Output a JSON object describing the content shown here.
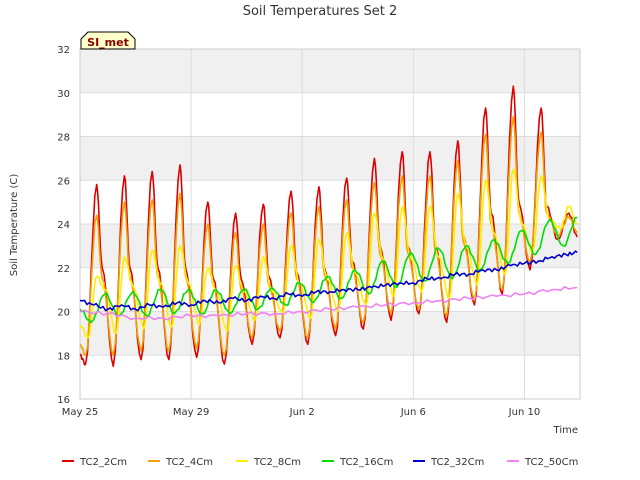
{
  "chart_data": {
    "type": "line",
    "title": "Soil Temperatures Set 2",
    "xlabel": "Time",
    "ylabel": "Soil Temperature (C)",
    "badge": "SI_met",
    "ylim": [
      16,
      32
    ],
    "yticks": [
      16,
      18,
      20,
      22,
      24,
      26,
      28,
      30,
      32
    ],
    "xlim": [
      0,
      18.0
    ],
    "x_unit": "days since May 25",
    "xticks": [
      {
        "x": 0,
        "label": "May 25"
      },
      {
        "x": 4,
        "label": "May 29"
      },
      {
        "x": 8,
        "label": "Jun 2"
      },
      {
        "x": 12,
        "label": "Jun 6"
      },
      {
        "x": 16,
        "label": "Jun 10"
      }
    ],
    "series": [
      {
        "name": "TC2_2Cm",
        "color": "#dd0000",
        "x": [
          0,
          0.2,
          0.6,
          0.8,
          1.2,
          1.6,
          1.8,
          2.2,
          2.6,
          2.8,
          3.2,
          3.6,
          3.8,
          4.2,
          4.6,
          4.8,
          5.2,
          5.6,
          5.8,
          6.2,
          6.6,
          6.8,
          7.2,
          7.6,
          7.8,
          8.2,
          8.6,
          8.8,
          9.2,
          9.6,
          9.8,
          10.2,
          10.6,
          10.8,
          11.2,
          11.6,
          11.8,
          12.2,
          12.6,
          12.8,
          13.2,
          13.6,
          13.8,
          14.2,
          14.6,
          14.8,
          15.2,
          15.6,
          15.8,
          16.2,
          16.6,
          16.8,
          17.2,
          17.6,
          17.9
        ],
        "values": [
          18.0,
          17.6,
          25.8,
          22.0,
          17.5,
          26.2,
          22.0,
          17.8,
          26.4,
          22.0,
          17.8,
          26.7,
          22.0,
          17.9,
          25.0,
          21.5,
          17.6,
          24.5,
          21.5,
          18.5,
          24.9,
          21.6,
          18.8,
          25.5,
          21.8,
          18.5,
          25.7,
          22.0,
          18.9,
          26.1,
          22.3,
          19.2,
          27.0,
          23.0,
          19.6,
          27.3,
          23.0,
          19.9,
          27.3,
          23.0,
          19.5,
          27.8,
          23.5,
          20.3,
          29.3,
          24.5,
          20.8,
          30.3,
          25.0,
          21.9,
          29.3,
          24.8,
          23.3,
          24.5,
          23.4
        ]
      },
      {
        "name": "TC2_4Cm",
        "color": "#f0a000",
        "x": [
          0,
          0.2,
          0.6,
          0.8,
          1.2,
          1.6,
          1.8,
          2.2,
          2.6,
          2.8,
          3.2,
          3.6,
          3.8,
          4.2,
          4.6,
          4.8,
          5.2,
          5.6,
          5.8,
          6.2,
          6.6,
          6.8,
          7.2,
          7.6,
          7.8,
          8.2,
          8.6,
          8.8,
          9.2,
          9.6,
          9.8,
          10.2,
          10.6,
          10.8,
          11.2,
          11.6,
          11.8,
          12.2,
          12.6,
          12.8,
          13.2,
          13.6,
          13.8,
          14.2,
          14.6,
          14.8,
          15.2,
          15.6,
          15.8,
          16.2,
          16.6,
          16.8,
          17.2,
          17.6,
          17.9
        ],
        "values": [
          18.5,
          18.0,
          24.4,
          21.5,
          18.0,
          25.0,
          21.6,
          18.2,
          25.1,
          21.6,
          18.2,
          25.4,
          21.6,
          18.3,
          24.0,
          21.2,
          18.0,
          23.6,
          21.0,
          18.8,
          24.0,
          21.2,
          19.1,
          24.5,
          21.5,
          18.8,
          24.8,
          21.7,
          19.2,
          25.1,
          22.0,
          19.5,
          25.9,
          22.6,
          19.9,
          26.2,
          22.7,
          20.1,
          26.2,
          22.7,
          19.8,
          26.9,
          23.2,
          20.5,
          28.1,
          24.0,
          21.0,
          28.9,
          24.5,
          22.2,
          28.2,
          24.5,
          23.5,
          24.3,
          23.6
        ]
      },
      {
        "name": "TC2_8Cm",
        "color": "#ffee00",
        "x": [
          0,
          0.3,
          0.6,
          0.9,
          1.3,
          1.6,
          1.9,
          2.3,
          2.6,
          2.9,
          3.3,
          3.6,
          3.9,
          4.3,
          4.6,
          4.9,
          5.3,
          5.6,
          5.9,
          6.3,
          6.6,
          6.9,
          7.3,
          7.6,
          7.9,
          8.3,
          8.6,
          8.9,
          9.3,
          9.6,
          9.9,
          10.3,
          10.6,
          10.9,
          11.3,
          11.6,
          11.9,
          12.3,
          12.6,
          12.9,
          13.3,
          13.6,
          13.9,
          14.3,
          14.6,
          14.9,
          15.3,
          15.6,
          15.9,
          16.3,
          16.6,
          16.9,
          17.3,
          17.6,
          17.9
        ],
        "values": [
          19.4,
          18.8,
          21.6,
          21.0,
          19.0,
          22.5,
          21.2,
          19.2,
          22.8,
          21.3,
          19.3,
          23.0,
          21.3,
          19.4,
          22.0,
          21.0,
          19.1,
          22.1,
          20.9,
          19.6,
          22.5,
          21.0,
          19.9,
          23.0,
          21.3,
          19.7,
          23.3,
          21.5,
          20.0,
          23.6,
          21.8,
          20.3,
          24.5,
          22.4,
          20.7,
          24.8,
          22.5,
          20.9,
          24.8,
          22.5,
          20.6,
          25.4,
          23.0,
          21.2,
          26.0,
          23.6,
          21.7,
          26.5,
          24.0,
          22.7,
          26.2,
          24.2,
          23.8,
          24.8,
          24.0
        ]
      },
      {
        "name": "TC2_16Cm",
        "color": "#00dd00",
        "x": [
          0,
          0.4,
          0.9,
          1.4,
          1.9,
          2.4,
          2.9,
          3.4,
          3.9,
          4.4,
          4.9,
          5.4,
          5.9,
          6.4,
          6.9,
          7.4,
          7.9,
          8.4,
          8.9,
          9.4,
          9.9,
          10.4,
          10.9,
          11.4,
          11.9,
          12.4,
          12.9,
          13.4,
          13.9,
          14.4,
          14.9,
          15.4,
          15.9,
          16.4,
          16.9,
          17.4,
          17.9
        ],
        "values": [
          20.1,
          19.5,
          20.8,
          19.8,
          20.9,
          19.8,
          21.0,
          19.9,
          21.0,
          19.9,
          21.0,
          19.9,
          21.0,
          20.1,
          21.1,
          20.3,
          21.3,
          20.4,
          21.6,
          20.6,
          21.9,
          20.8,
          22.3,
          21.1,
          22.7,
          21.4,
          22.9,
          21.5,
          23.0,
          21.9,
          23.3,
          22.2,
          23.7,
          22.6,
          24.2,
          23.0,
          24.3
        ]
      },
      {
        "name": "TC2_32Cm",
        "color": "#0000cc",
        "x": [
          0,
          0.5,
          1.0,
          1.5,
          2.0,
          2.5,
          3.0,
          3.5,
          4.0,
          4.5,
          5.0,
          5.5,
          6.0,
          6.5,
          7.0,
          7.5,
          8.0,
          8.5,
          9.0,
          9.5,
          10.0,
          10.5,
          11.0,
          11.5,
          12.0,
          12.5,
          13.0,
          13.5,
          14.0,
          14.5,
          15.0,
          15.5,
          16.0,
          16.5,
          17.0,
          17.5,
          17.9
        ],
        "values": [
          20.5,
          20.3,
          20.1,
          20.3,
          20.1,
          20.3,
          20.2,
          20.4,
          20.3,
          20.5,
          20.4,
          20.6,
          20.5,
          20.7,
          20.6,
          20.8,
          20.7,
          20.9,
          20.9,
          21.0,
          21.0,
          21.1,
          21.2,
          21.3,
          21.3,
          21.5,
          21.5,
          21.7,
          21.7,
          21.9,
          21.9,
          22.1,
          22.2,
          22.3,
          22.5,
          22.6,
          22.7
        ]
      },
      {
        "name": "TC2_50Cm",
        "color": "#ee82ee",
        "x": [
          0,
          1.0,
          2.0,
          3.0,
          4.0,
          5.0,
          6.0,
          7.0,
          8.0,
          9.0,
          10.0,
          11.0,
          12.0,
          13.0,
          14.0,
          15.0,
          16.0,
          17.0,
          17.9
        ],
        "values": [
          20.0,
          19.9,
          19.7,
          19.7,
          19.8,
          19.8,
          19.9,
          19.9,
          20.0,
          20.1,
          20.2,
          20.3,
          20.4,
          20.5,
          20.6,
          20.7,
          20.8,
          21.0,
          21.1
        ]
      }
    ]
  }
}
